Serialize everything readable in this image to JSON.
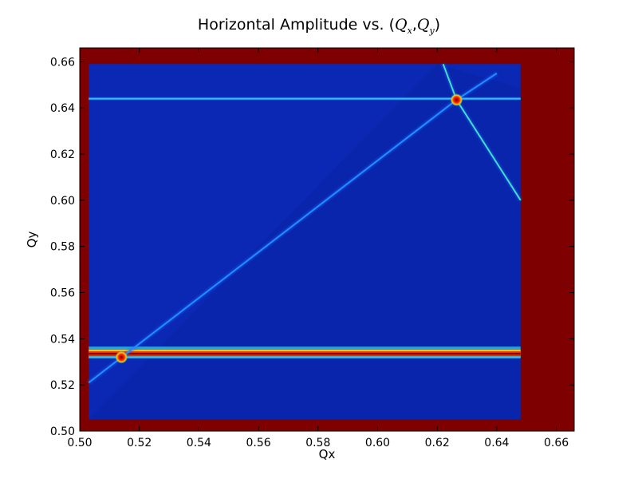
{
  "chart_data": {
    "type": "heatmap",
    "title_prefix": "Horizontal Amplitude vs. (",
    "title_q": "Q",
    "title_sub_x": "x",
    "title_sep": ",",
    "title_sub_y": "y",
    "title_suffix": ")",
    "xlabel": "Qx",
    "ylabel": "Qy",
    "xlim": [
      0.5,
      0.666
    ],
    "ylim": [
      0.5,
      0.666
    ],
    "xticks": [
      "0.50",
      "0.52",
      "0.54",
      "0.56",
      "0.58",
      "0.60",
      "0.62",
      "0.64",
      "0.66"
    ],
    "yticks": [
      "0.50",
      "0.52",
      "0.54",
      "0.56",
      "0.58",
      "0.60",
      "0.62",
      "0.64",
      "0.66"
    ],
    "colormap": "jet",
    "background_color": "#7f0000",
    "scan_region": {
      "qx": [
        0.503,
        0.648
      ],
      "qy": [
        0.505,
        0.659
      ],
      "base_color": "#0a28b4"
    },
    "resonance_lines": [
      {
        "kind": "horizontal",
        "qy": 0.644,
        "color": "#30c8f0"
      },
      {
        "kind": "horizontal",
        "qy": 0.5335,
        "color": "#e84010"
      },
      {
        "kind": "horizontal",
        "qy": 0.532,
        "color": "#30d0e0"
      },
      {
        "kind": "diagonal",
        "from": [
          0.503,
          0.521
        ],
        "to": [
          0.6265,
          0.6435
        ],
        "color": "#1e90ff"
      },
      {
        "kind": "diagonal",
        "from": [
          0.6265,
          0.6435
        ],
        "to": [
          0.648,
          0.6
        ],
        "color": "#40e0c0"
      },
      {
        "kind": "diagonal",
        "from": [
          0.6265,
          0.6435
        ],
        "to": [
          0.622,
          0.659
        ],
        "color": "#40e0c0"
      },
      {
        "kind": "diagonal",
        "from": [
          0.6265,
          0.6435
        ],
        "to": [
          0.64,
          0.655
        ],
        "color": "#1e90ff"
      }
    ],
    "hotspots": [
      {
        "qx": 0.6265,
        "qy": 0.6435
      },
      {
        "qx": 0.514,
        "qy": 0.532
      }
    ]
  }
}
